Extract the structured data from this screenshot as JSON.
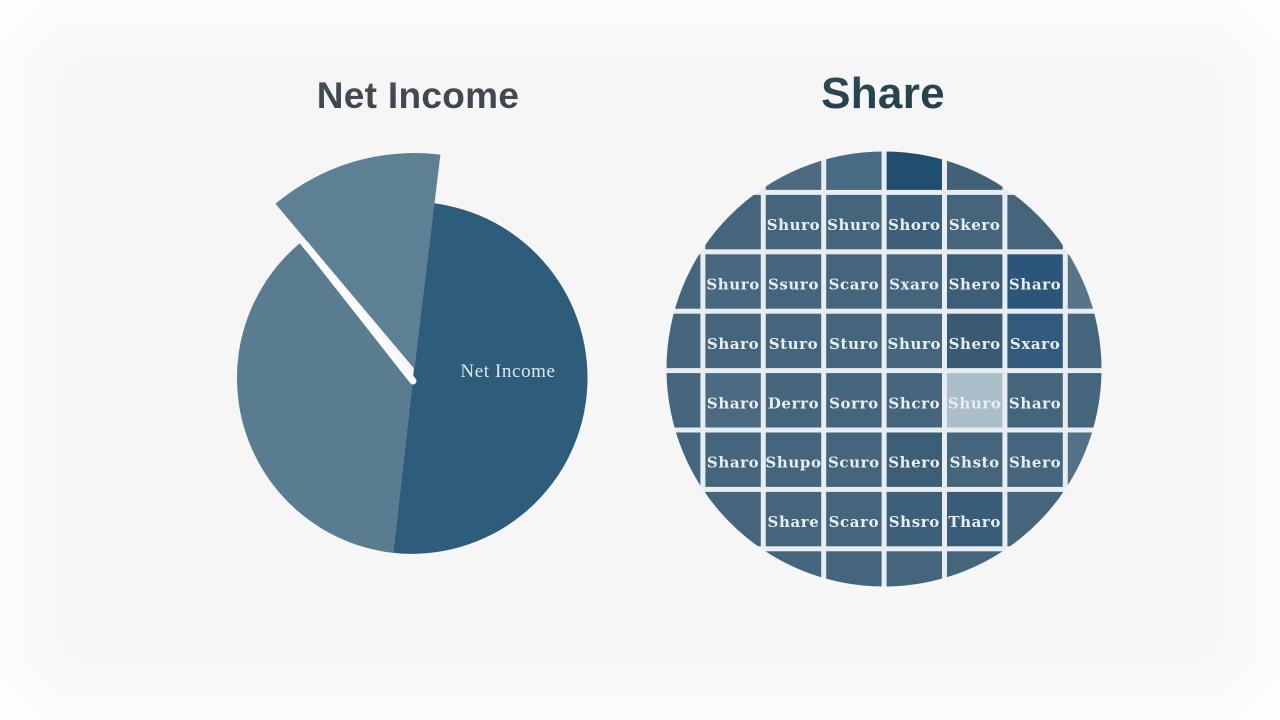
{
  "page": {
    "background_color": "#f5f6f5"
  },
  "chart_data": [
    {
      "type": "pie",
      "title": "Net Income",
      "title_color": "#3e474f",
      "inner_label": "Net Income",
      "inner_label_color": "#dde8ec",
      "separator_color": "#fafbfa",
      "legend": "none",
      "slices": [
        {
          "label": "Net Income",
          "value_pct": 50,
          "color": "#2e5d7b",
          "start_deg": -84.5,
          "end_deg": 96.5,
          "exploded": false
        },
        {
          "label": "",
          "value_pct": 37,
          "color": "#5a7c90",
          "start_deg": 96.5,
          "end_deg": 229.9,
          "exploded": false
        },
        {
          "label": "",
          "value_pct": 13,
          "color": "#5e8094",
          "start_deg": 229.9,
          "end_deg": 276.9,
          "exploded": true
        }
      ]
    },
    {
      "type": "waffle",
      "shape": "circle",
      "title": "Share",
      "title_color": "#25404c",
      "unit_label": "Share",
      "rows": 8,
      "cols": 8,
      "labeled_tiles": 32,
      "grid_background": "#e7edf0",
      "tile_default_color": "#45657d",
      "tile_label_color": "#e6eef3",
      "highlight_color": "#aabfc9",
      "dark_tile_color": "#1f4e6e",
      "tile_labels": [
        [
          null,
          "Shuro",
          "Shuro",
          "Shoro",
          "Skero",
          null
        ],
        [
          "Shuro",
          "Ssuro",
          "Scaro",
          "Sxaro",
          "Shero",
          "Sharo"
        ],
        [
          "Sharo",
          "Sturo",
          "Sturo",
          "Shuro",
          "Shero",
          "Sxaro"
        ],
        [
          "Sharo",
          "Derro",
          "Sorro",
          "Shcro",
          "Shuro",
          "Sharo"
        ],
        [
          "Sharo",
          "Shupo",
          "Scuro",
          "Shero",
          "Shsto",
          "Shero"
        ],
        [
          null,
          "Share",
          "Scaro",
          "Shsro",
          "Tharo",
          null
        ]
      ],
      "color_overrides": [
        {
          "row": 0,
          "col": 2,
          "color": "#4e6a80"
        },
        {
          "row": 0,
          "col": 3,
          "color": "#486a82"
        },
        {
          "row": 0,
          "col": 4,
          "color": "#1f4e6e"
        },
        {
          "row": 0,
          "col": 5,
          "color": "#42627a"
        },
        {
          "row": 1,
          "col": 4,
          "color": "#3d5f79"
        },
        {
          "row": 2,
          "col": 1,
          "color": "#486881"
        },
        {
          "row": 2,
          "col": 5,
          "color": "#3c5e76"
        },
        {
          "row": 2,
          "col": 6,
          "color": "#2b567a"
        },
        {
          "row": 2,
          "col": 7,
          "color": "#587487"
        },
        {
          "row": 3,
          "col": 5,
          "color": "#395a72"
        },
        {
          "row": 3,
          "col": 6,
          "color": "#315a7d"
        },
        {
          "row": 4,
          "col": 1,
          "color": "#4b6a81"
        },
        {
          "row": 4,
          "col": 5,
          "color": "#aabfc9"
        },
        {
          "row": 5,
          "col": 4,
          "color": "#3d5e77"
        },
        {
          "row": 5,
          "col": 7,
          "color": "#547086"
        },
        {
          "row": 6,
          "col": 4,
          "color": "#3e5f79"
        },
        {
          "row": 6,
          "col": 5,
          "color": "#395c78"
        }
      ]
    }
  ]
}
